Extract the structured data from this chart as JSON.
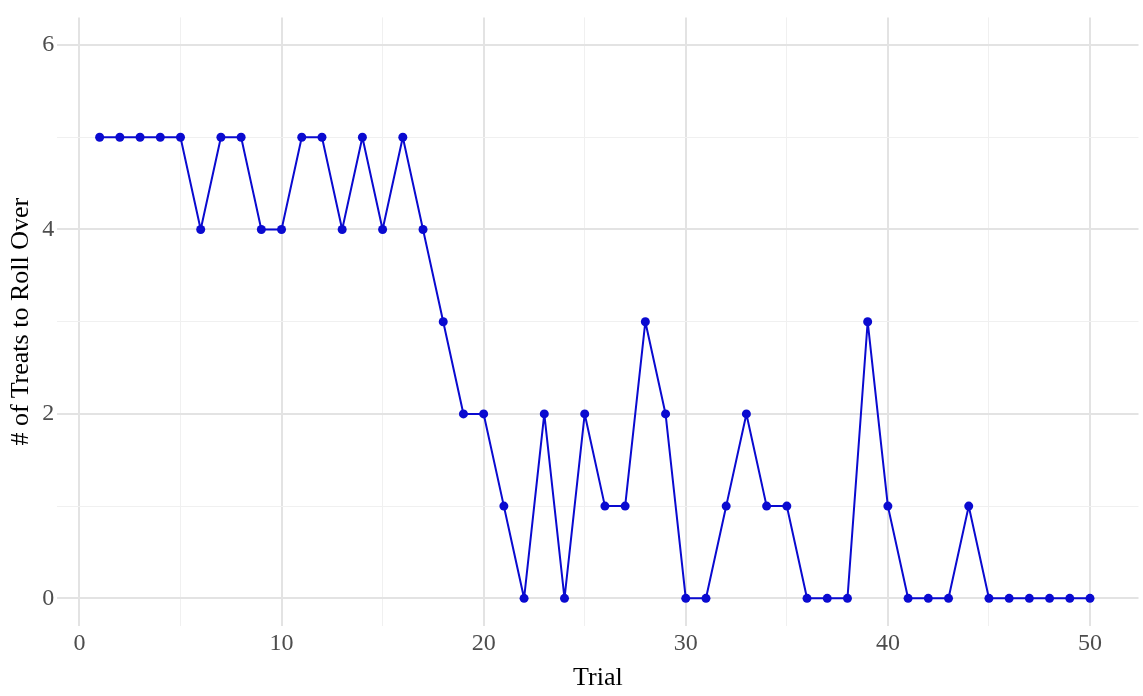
{
  "chart_data": {
    "type": "line",
    "xlabel": "Trial",
    "ylabel": "# of Treats to Roll Over",
    "x": [
      1,
      2,
      3,
      4,
      5,
      6,
      7,
      8,
      9,
      10,
      11,
      12,
      13,
      14,
      15,
      16,
      17,
      18,
      19,
      20,
      21,
      22,
      23,
      24,
      25,
      26,
      27,
      28,
      29,
      30,
      31,
      32,
      33,
      34,
      35,
      36,
      37,
      38,
      39,
      40,
      41,
      42,
      43,
      44,
      45,
      46,
      47,
      48,
      49,
      50
    ],
    "series": [
      {
        "color": "#0a0ad0",
        "values": [
          5,
          5,
          5,
          5,
          5,
          4,
          5,
          5,
          4,
          4,
          5,
          5,
          4,
          5,
          4,
          5,
          4,
          3,
          2,
          2,
          1,
          0,
          2,
          0,
          2,
          1,
          1,
          3,
          2,
          0,
          0,
          1,
          2,
          1,
          1,
          0,
          0,
          0,
          3,
          1,
          0,
          0,
          0,
          1,
          0,
          0,
          0,
          0,
          0,
          0
        ]
      }
    ],
    "xlim": [
      -1.1,
      52.4
    ],
    "ylim": [
      -0.3,
      6.3
    ],
    "xticks": [
      0,
      {
        "value": 5,
        "label": null
      },
      10,
      {
        "value": 15,
        "label": null
      },
      20,
      {
        "value": 25,
        "label": null
      },
      30,
      {
        "value": 35,
        "label": null
      },
      40,
      {
        "value": 45,
        "label": null
      },
      50
    ],
    "yticks": [
      0,
      {
        "value": 1,
        "label": null
      },
      2,
      {
        "value": 3,
        "label": null
      },
      4,
      {
        "value": 5,
        "label": null
      },
      6
    ],
    "grid": true,
    "legend": false,
    "marker": "circle",
    "line_style": "solid"
  }
}
